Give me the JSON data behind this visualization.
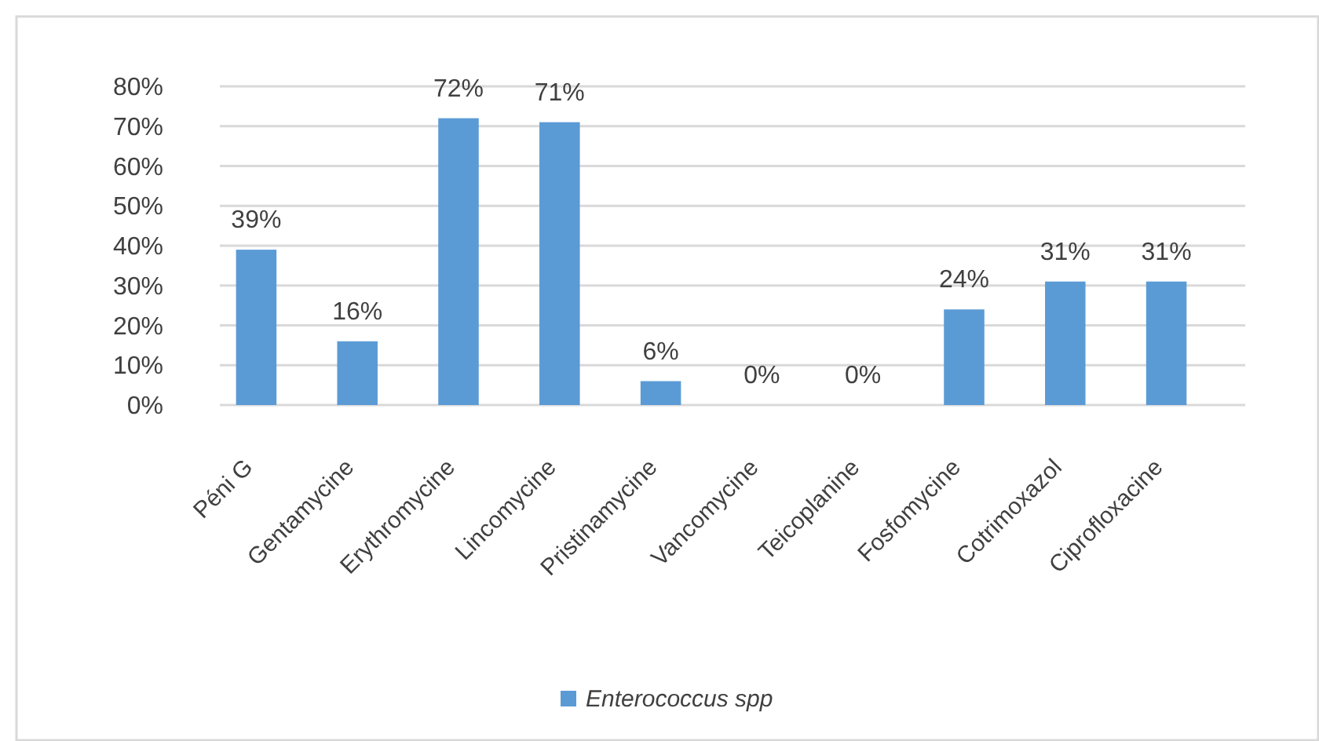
{
  "chart_data": {
    "type": "bar",
    "categories": [
      "Péni G",
      "Gentamycine",
      "Erythromycine",
      "Lincomycine",
      "Pristinamycine",
      "Vancomycine",
      "Teicoplanine",
      "Fosfomycine",
      "Cotrimoxazol",
      "Ciprofloxacine"
    ],
    "series": [
      {
        "name": "Enterococcus spp",
        "color": "#5b9bd5",
        "values": [
          39,
          16,
          72,
          71,
          6,
          0,
          0,
          24,
          31,
          31
        ],
        "value_labels": [
          "39%",
          "16%",
          "72%",
          "71%",
          "6%",
          "0%",
          "0%",
          "24%",
          "31%",
          "31%"
        ]
      }
    ],
    "ylim": [
      0,
      80
    ],
    "yticks": [
      {
        "value": 0,
        "label": "0%"
      },
      {
        "value": 10,
        "label": "10%"
      },
      {
        "value": 20,
        "label": "20%"
      },
      {
        "value": 30,
        "label": "30%"
      },
      {
        "value": 40,
        "label": "40%"
      },
      {
        "value": 50,
        "label": "50%"
      },
      {
        "value": 60,
        "label": "60%"
      },
      {
        "value": 70,
        "label": "70%"
      },
      {
        "value": 80,
        "label": "80%"
      }
    ],
    "grid": "y",
    "legend": "bottom"
  }
}
